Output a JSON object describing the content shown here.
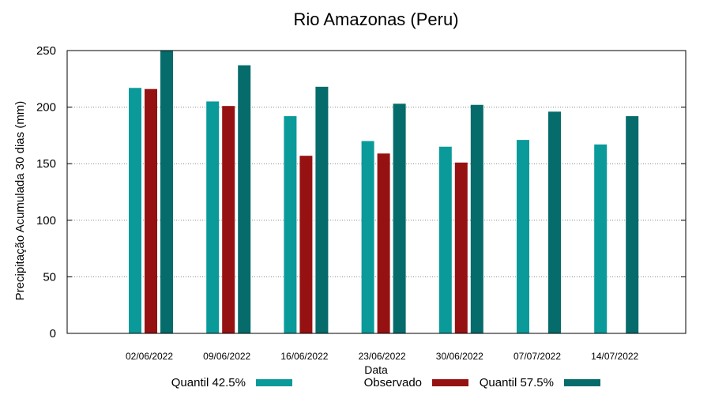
{
  "chart_data": {
    "type": "bar",
    "title": "Rio Amazonas (Peru)",
    "xlabel": "Data",
    "ylabel": "Precipitação Acumulada 30 dias (mm)",
    "ylim": [
      0,
      250
    ],
    "yticks": [
      0,
      50,
      100,
      150,
      200,
      250
    ],
    "grid": true,
    "legend_position": "bottom",
    "categories": [
      "02/06/2022",
      "09/06/2022",
      "16/06/2022",
      "23/06/2022",
      "30/06/2022",
      "07/07/2022",
      "14/07/2022"
    ],
    "series": [
      {
        "name": "Quantil 42.5%",
        "color": "#0A9A9A",
        "values": [
          217,
          205,
          192,
          170,
          165,
          171,
          167
        ]
      },
      {
        "name": "Observado",
        "color": "#961212",
        "values": [
          216,
          201,
          157,
          159,
          151,
          null,
          null
        ]
      },
      {
        "name": "Quantil 57.5%",
        "color": "#066B6B",
        "values": [
          250,
          237,
          218,
          203,
          202,
          196,
          192
        ]
      }
    ]
  }
}
